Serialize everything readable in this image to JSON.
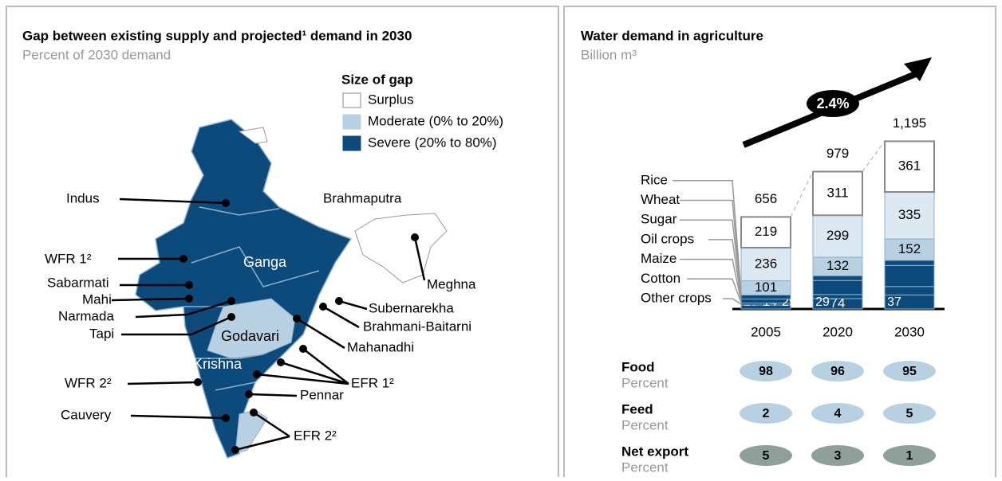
{
  "map_panel": {
    "title": "Gap between existing supply and projected¹ demand in 2030",
    "subtitle": "Percent of 2030 demand",
    "legend": {
      "title": "Size of gap",
      "items": [
        {
          "label": "Surplus",
          "color": "#ffffff"
        },
        {
          "label": "Moderate (0% to 20%)",
          "color": "#b7d1e2"
        },
        {
          "label": "Severe (20% to 80%)",
          "color": "#0c4a7c"
        }
      ]
    },
    "labels": [
      "Indus",
      "Brahmaputra",
      "WFR 1²",
      "Ganga",
      "Sabarmati",
      "Mahi",
      "Narmada",
      "Tapi",
      "Godavari",
      "Krishna",
      "Subernarekha",
      "Brahmani-Baitarni",
      "Mahanadhi",
      "Meghna",
      "EFR 1²",
      "Pennar",
      "WFR 2²",
      "Cauvery",
      "EFR 2²"
    ]
  },
  "chart_data": {
    "type": "stacked_bar",
    "title": "Water demand in agriculture",
    "subtitle": "Billion m³",
    "categories": [
      "2005",
      "2020",
      "2030"
    ],
    "series": [
      {
        "name": "Other crops",
        "color": "#0c4a7c",
        "values": [
          28,
          74,
          100
        ],
        "show_labels": [
          true,
          true,
          false
        ]
      },
      {
        "name": "Cotton",
        "color": "#0c4a7c",
        "values": [
          14,
          29,
          60
        ],
        "show_labels": [
          true,
          true,
          false
        ]
      },
      {
        "name": "Maize",
        "color": "#0c4a7c",
        "values": [
          29,
          100,
          150
        ],
        "show_labels": [
          true,
          false,
          false
        ]
      },
      {
        "name": "Oil crops",
        "color": "#0c4a7c",
        "values": [
          29,
          34,
          37
        ],
        "show_labels": [
          false,
          false,
          true
        ]
      },
      {
        "name": "Sugar",
        "color": "#b7d1e2",
        "values": [
          101,
          132,
          152
        ],
        "show_labels": [
          true,
          true,
          true
        ]
      },
      {
        "name": "Wheat",
        "color": "#dce8f2",
        "values": [
          236,
          299,
          335
        ],
        "show_labels": [
          true,
          true,
          true
        ]
      },
      {
        "name": "Rice",
        "color": "#ffffff",
        "values": [
          219,
          311,
          361
        ],
        "show_labels": [
          true,
          true,
          true
        ]
      }
    ],
    "totals": [
      656,
      979,
      1195
    ],
    "total_labels": [
      "656",
      "979",
      "1,195"
    ],
    "ylim": [
      0,
      1300
    ],
    "growth_label": "2.4%",
    "table": [
      {
        "name": "Food",
        "unit": "Percent",
        "color": "#b7d1e2",
        "values": [
          98,
          96,
          95
        ]
      },
      {
        "name": "Feed",
        "unit": "Percent",
        "color": "#b7d1e2",
        "values": [
          2,
          4,
          5
        ]
      },
      {
        "name": "Net export",
        "unit": "Percent",
        "color": "#8f9f99",
        "values": [
          5,
          3,
          1
        ]
      }
    ]
  }
}
